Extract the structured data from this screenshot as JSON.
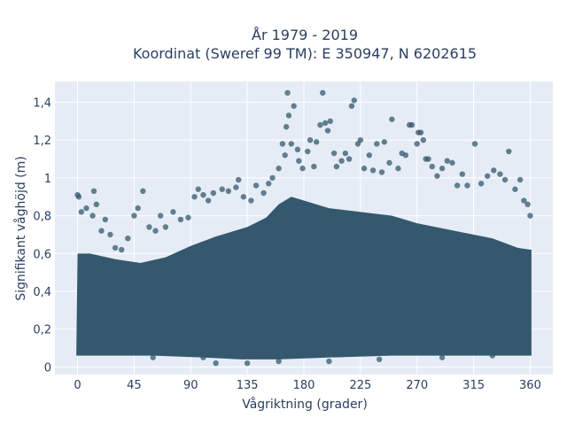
{
  "chart_data": {
    "type": "scatter",
    "title_line1": "År 1979 - 2019",
    "title_line2": "Koordinat (Sweref 99 TM): E 350947, N 6202615",
    "xlabel": "Vågriktning (grader)",
    "ylabel": "Signifikant våghöjd (m)",
    "xlim": [
      -18,
      378
    ],
    "ylim": [
      -0.04,
      1.51
    ],
    "x_ticks": [
      0,
      45,
      90,
      135,
      180,
      225,
      270,
      315,
      360
    ],
    "x_tick_labels": [
      "0",
      "45",
      "90",
      "135",
      "180",
      "225",
      "270",
      "315",
      "360"
    ],
    "y_ticks": [
      0,
      0.2,
      0.4,
      0.6,
      0.8,
      1.0,
      1.2,
      1.4
    ],
    "y_tick_labels": [
      "0",
      "0,2",
      "0,4",
      "0,6",
      "0,8",
      "1",
      "1,2",
      "1,4"
    ],
    "grid": true,
    "marker_color": "#34586e",
    "plot_bgcolor": "#e5ecf6",
    "series": [
      {
        "points": [
          [
            0,
            0.91
          ],
          [
            1,
            0.9
          ],
          [
            3,
            0.82
          ],
          [
            7,
            0.84
          ],
          [
            12,
            0.8
          ],
          [
            13,
            0.93
          ],
          [
            15,
            0.86
          ],
          [
            19,
            0.72
          ],
          [
            22,
            0.78
          ],
          [
            26,
            0.7
          ],
          [
            30,
            0.63
          ],
          [
            35,
            0.62
          ],
          [
            40,
            0.68
          ],
          [
            45,
            0.8
          ],
          [
            48,
            0.84
          ],
          [
            52,
            0.93
          ],
          [
            57,
            0.74
          ],
          [
            62,
            0.72
          ],
          [
            66,
            0.8
          ],
          [
            70,
            0.74
          ],
          [
            76,
            0.82
          ],
          [
            82,
            0.78
          ],
          [
            88,
            0.79
          ],
          [
            93,
            0.9
          ],
          [
            96,
            0.94
          ],
          [
            100,
            0.91
          ],
          [
            104,
            0.88
          ],
          [
            108,
            0.92
          ],
          [
            115,
            0.94
          ],
          [
            120,
            0.93
          ],
          [
            126,
            0.95
          ],
          [
            128,
            0.99
          ],
          [
            132,
            0.9
          ],
          [
            138,
            0.88
          ],
          [
            142,
            0.96
          ],
          [
            148,
            0.92
          ],
          [
            152,
            0.97
          ],
          [
            155,
            1.0
          ],
          [
            160,
            1.05
          ],
          [
            163,
            1.18
          ],
          [
            165,
            1.12
          ],
          [
            166,
            1.27
          ],
          [
            167,
            1.45
          ],
          [
            168,
            1.33
          ],
          [
            170,
            1.18
          ],
          [
            172,
            1.38
          ],
          [
            175,
            1.15
          ],
          [
            176,
            1.09
          ],
          [
            179,
            1.05
          ],
          [
            183,
            1.14
          ],
          [
            185,
            1.2
          ],
          [
            188,
            1.06
          ],
          [
            190,
            1.19
          ],
          [
            193,
            1.28
          ],
          [
            195,
            1.45
          ],
          [
            197,
            1.29
          ],
          [
            199,
            1.25
          ],
          [
            201,
            1.3
          ],
          [
            204,
            1.13
          ],
          [
            206,
            1.06
          ],
          [
            210,
            1.09
          ],
          [
            213,
            1.13
          ],
          [
            216,
            1.1
          ],
          [
            218,
            1.38
          ],
          [
            220,
            1.41
          ],
          [
            223,
            1.18
          ],
          [
            225,
            1.2
          ],
          [
            228,
            1.05
          ],
          [
            232,
            1.12
          ],
          [
            235,
            1.04
          ],
          [
            238,
            1.18
          ],
          [
            242,
            1.03
          ],
          [
            244,
            1.19
          ],
          [
            248,
            1.08
          ],
          [
            250,
            1.31
          ],
          [
            255,
            1.05
          ],
          [
            258,
            1.13
          ],
          [
            261,
            1.12
          ],
          [
            264,
            1.28
          ],
          [
            266,
            1.28
          ],
          [
            270,
            1.18
          ],
          [
            271,
            1.24
          ],
          [
            273,
            1.24
          ],
          [
            275,
            1.2
          ],
          [
            277,
            1.1
          ],
          [
            279,
            1.1
          ],
          [
            282,
            1.06
          ],
          [
            286,
            1.01
          ],
          [
            290,
            1.05
          ],
          [
            294,
            1.09
          ],
          [
            298,
            1.08
          ],
          [
            302,
            0.96
          ],
          [
            306,
            1.02
          ],
          [
            310,
            0.96
          ],
          [
            316,
            1.18
          ],
          [
            321,
            0.97
          ],
          [
            326,
            1.01
          ],
          [
            331,
            1.04
          ],
          [
            336,
            1.02
          ],
          [
            340,
            0.99
          ],
          [
            343,
            1.14
          ],
          [
            348,
            0.94
          ],
          [
            352,
            0.99
          ],
          [
            355,
            0.88
          ],
          [
            358,
            0.86
          ],
          [
            360,
            0.8
          ],
          [
            20,
            0.08
          ],
          [
            60,
            0.05
          ],
          [
            100,
            0.05
          ],
          [
            110,
            0.02
          ],
          [
            135,
            0.02
          ],
          [
            160,
            0.03
          ],
          [
            200,
            0.03
          ],
          [
            240,
            0.04
          ],
          [
            290,
            0.05
          ],
          [
            330,
            0.06
          ]
        ]
      }
    ]
  }
}
